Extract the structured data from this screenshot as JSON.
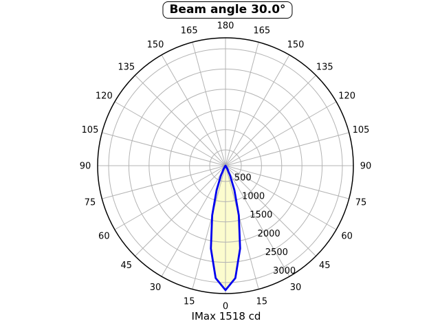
{
  "chart_data": {
    "type": "polar",
    "title": "Beam angle 30.0°",
    "footer": "IMax 1518 cd",
    "beam_angle_deg": 30.0,
    "imax_cd": 1518,
    "angle_tick_labels_deg": [
      0,
      15,
      30,
      45,
      60,
      75,
      90,
      105,
      120,
      135,
      150,
      165,
      180
    ],
    "angle_ticks_mirrored_both_sides": true,
    "angle_zero_location": "bottom",
    "r_tick_values": [
      500,
      1000,
      1500,
      2000,
      2500,
      3000
    ],
    "r_label_spoke_angle_deg": 22.5,
    "grid": true,
    "curve": {
      "description": "relative luminous intensity vs angle from beam axis, lobe points downward (0 deg at bottom), symmetric/mirrored about 0",
      "angles_deg": [
        0,
        5,
        10,
        15,
        20,
        25,
        30,
        35,
        40,
        45,
        50,
        55,
        60,
        65,
        70,
        75,
        80,
        85,
        90
      ],
      "relative_intensity": [
        1.0,
        0.907,
        0.676,
        0.414,
        0.209,
        0.087,
        0.03,
        0.008,
        0.002,
        0.0004,
        0.0001,
        0,
        0,
        0,
        0,
        0,
        0,
        0,
        0
      ]
    },
    "colors": {
      "beam_stroke": "#0000ee",
      "beam_fill": "#fcfcce",
      "grid": "#b3b3b3",
      "outline": "#000000",
      "background": "#ffffff",
      "text": "#000000"
    }
  }
}
